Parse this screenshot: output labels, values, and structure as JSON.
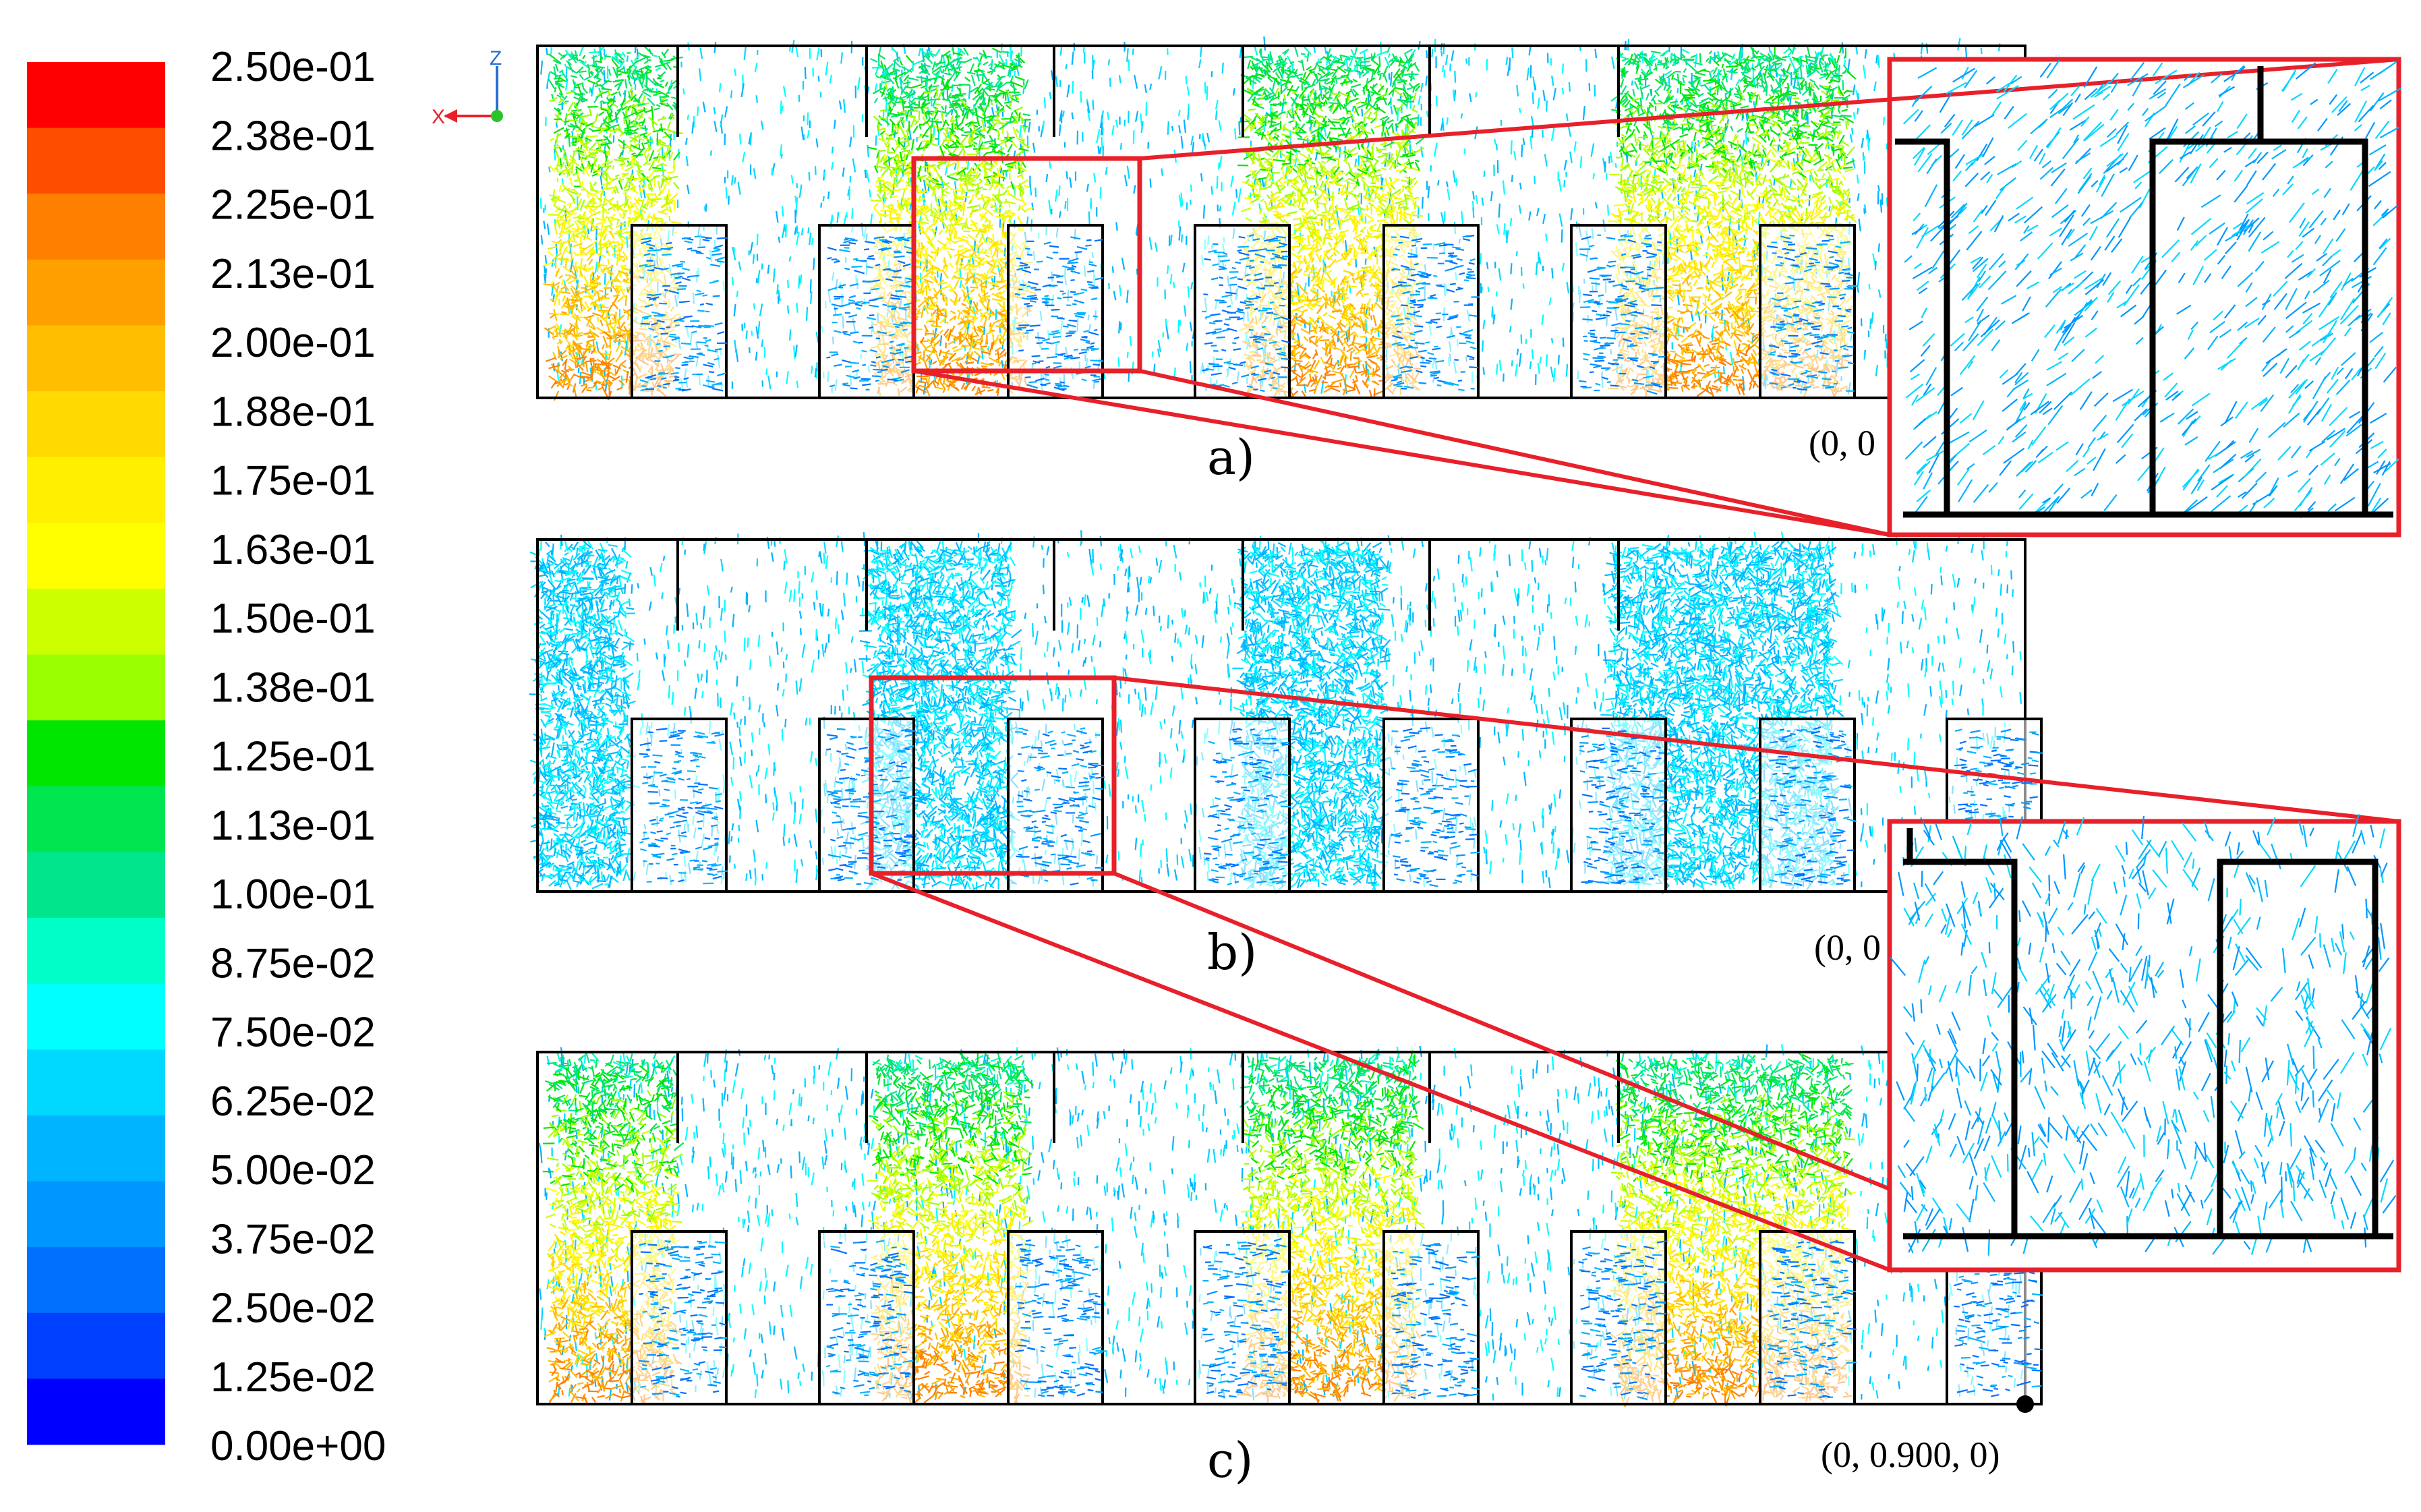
{
  "legend": {
    "labels": [
      "2.50e-01",
      "2.38e-01",
      "2.25e-01",
      "2.13e-01",
      "2.00e-01",
      "1.88e-01",
      "1.75e-01",
      "1.63e-01",
      "1.50e-01",
      "1.38e-01",
      "1.25e-01",
      "1.13e-01",
      "1.00e-01",
      "8.75e-02",
      "7.50e-02",
      "6.25e-02",
      "5.00e-02",
      "3.75e-02",
      "2.50e-02",
      "1.25e-02",
      "0.00e+00"
    ],
    "colors": [
      "#ff0000",
      "#ff4d00",
      "#ff8000",
      "#ff9f00",
      "#ffbf00",
      "#ffd900",
      "#fff000",
      "#ffff00",
      "#ccff00",
      "#99ff00",
      "#00e600",
      "#00e650",
      "#00e68c",
      "#00ffc8",
      "#00ffff",
      "#00d9ff",
      "#00b4ff",
      "#0096ff",
      "#0070ff",
      "#0040ff",
      "#0000ff"
    ]
  },
  "axis_triad": {
    "z": "Z",
    "x": "X"
  },
  "panels": [
    {
      "label": "a)",
      "coord": "(0, 0"
    },
    {
      "label": "b)",
      "coord": "(0, 0"
    },
    {
      "label": "c)",
      "coord": "(0, 0.900, 0)"
    }
  ],
  "colors": {
    "highlight": "#e8202a",
    "outline": "#000000"
  },
  "vector_field": {
    "slot_type_a_velocity": "mostly 5.0e-02 to 7.5e-02",
    "slot_type_b_velocity": "up to 1.75e-01 to 2.0e-01"
  }
}
